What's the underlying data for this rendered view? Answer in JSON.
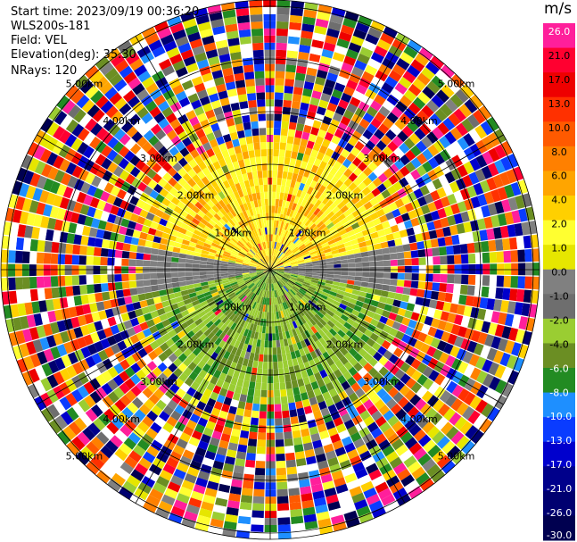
{
  "header": {
    "start_time": "Start time: 2023/09/19 00:36:20",
    "instrument": "WLS200s-181",
    "field": "Field: VEL",
    "elevation": "Elevation(deg): 35.30",
    "nrays": "NRays: 120"
  },
  "chart_data": {
    "type": "ppi",
    "field": "VEL",
    "nrays": 120,
    "elevation_deg": 35.3,
    "range_rings_km": [
      1.0,
      2.0,
      3.0,
      4.0,
      5.0
    ],
    "range_ring_labels": [
      "1.00km",
      "2.00km",
      "3.00km",
      "4.00km",
      "5.00km"
    ],
    "azimuth_spokes_deg": [
      0,
      30,
      60,
      90,
      120,
      150,
      180,
      210,
      240,
      270,
      300,
      330
    ],
    "colorbar": {
      "unit": "m/s",
      "ticks": [
        "26.0",
        "21.0",
        "17.0",
        "13.0",
        "10.0",
        "8.0",
        "6.0",
        "4.0",
        "2.0",
        "1.0",
        "0.0",
        "-1.0",
        "-2.0",
        "-4.0",
        "-6.0",
        "-8.0",
        "-10.0",
        "-13.0",
        "-17.0",
        "-21.0",
        "-26.0",
        "-30.0"
      ],
      "colors": [
        "#ff1f9b",
        "#ff0030",
        "#ee0000",
        "#ff3000",
        "#ff5a00",
        "#ff8000",
        "#ffa500",
        "#ffd000",
        "#ffff30",
        "#e6e600",
        "#808080",
        "#6e6e6e",
        "#9acd32",
        "#6b8e23",
        "#228b22",
        "#1e8fff",
        "#0a3cff",
        "#0000cd",
        "#00008b",
        "#000070",
        "#000050"
      ]
    },
    "pattern": {
      "north_sector": "positive velocity ~2-6 m/s (yellow/orange) out to ~2.4 km",
      "south_sector": "negative velocity ~-2 to -6 m/s (green) out to ~2.4 km",
      "east_west": "near-zero velocity (gray) band along 90 and 270 deg",
      "outer": "noise beyond ~2.4 km"
    }
  }
}
